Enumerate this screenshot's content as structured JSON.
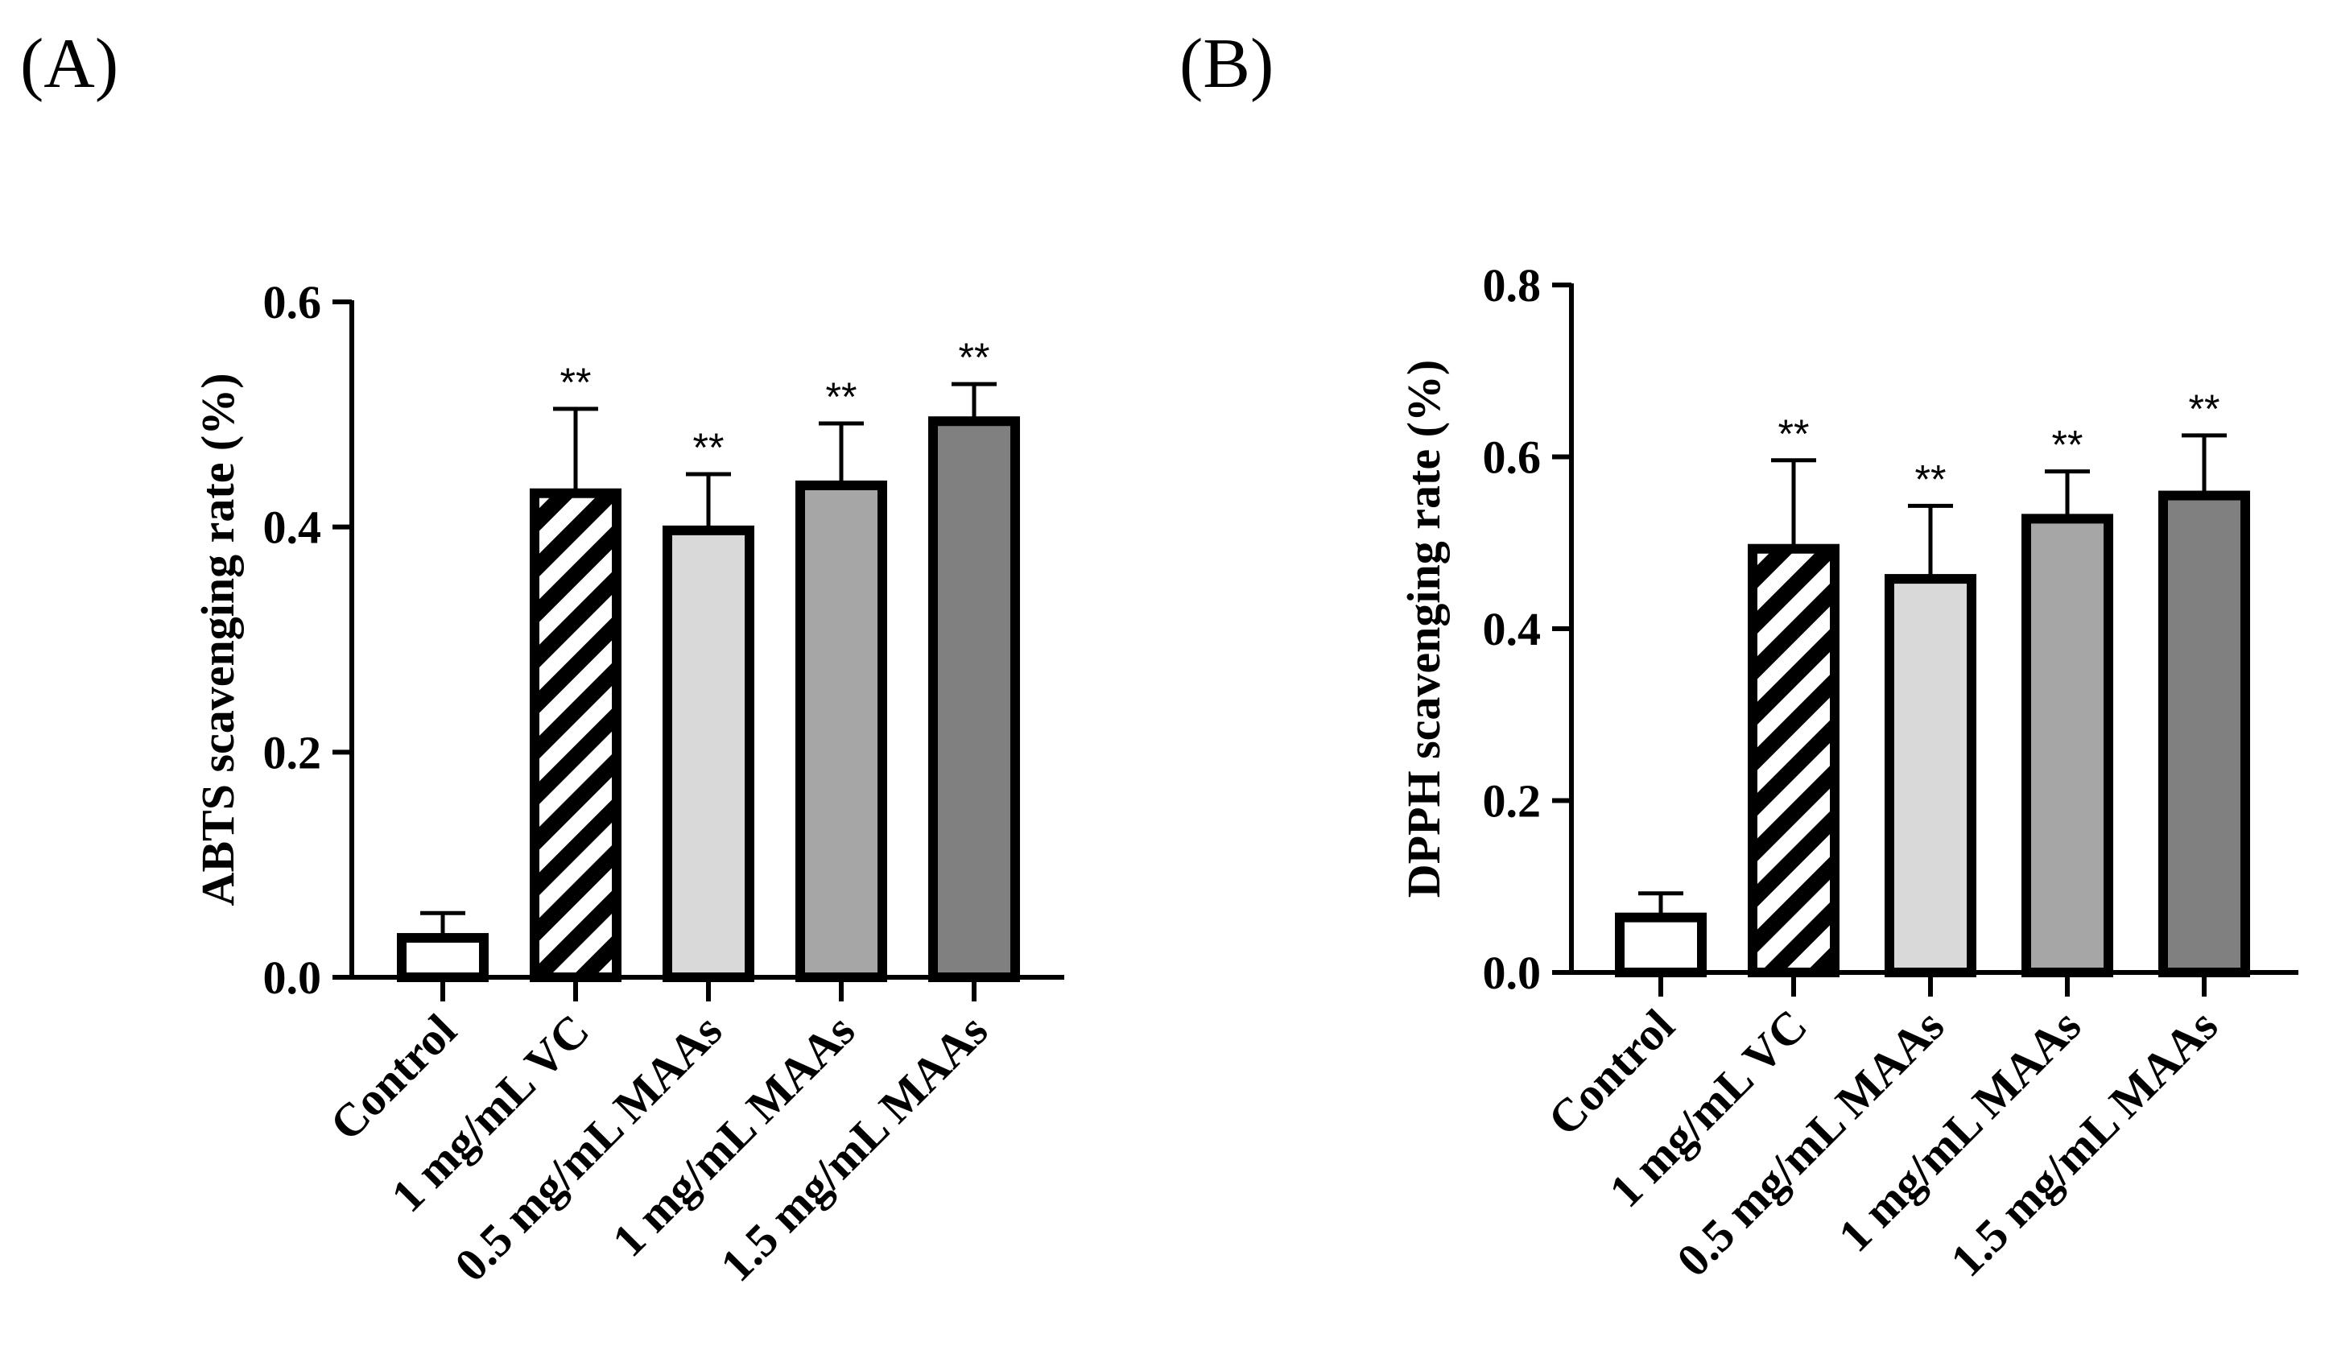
{
  "figure": {
    "panels": [
      "(A)",
      "(B)"
    ]
  },
  "chart_data": [
    {
      "type": "bar",
      "panel_label": "(A)",
      "categories": [
        "Control",
        "1 mg/mL VC",
        "0.5 mg/mL MAAs",
        "1 mg/mL MAAs",
        "1.5 mg/mL MAAs"
      ],
      "values": [
        0.035,
        0.43,
        0.397,
        0.437,
        0.494
      ],
      "errors": [
        0.022,
        0.075,
        0.05,
        0.055,
        0.033
      ],
      "significance": [
        "",
        "**",
        "**",
        "**",
        "**"
      ],
      "fills": [
        "#ffffff",
        "hatch",
        "#d9d9d9",
        "#a6a6a6",
        "#808080"
      ],
      "ylabel": "ABTS scavenging rate (%)",
      "xlabel": "",
      "ylim": [
        0,
        0.6
      ],
      "yticks": [
        0,
        0.2,
        0.4,
        0.6
      ],
      "ytick_labels": [
        "0.0",
        "0.2",
        "0.4",
        "0.6"
      ]
    },
    {
      "type": "bar",
      "panel_label": "(B)",
      "categories": [
        "Control",
        "1 mg/mL VC",
        "0.5 mg/mL MAAs",
        "1 mg/mL MAAs",
        "1.5 mg/mL MAAs"
      ],
      "values": [
        0.064,
        0.493,
        0.458,
        0.528,
        0.555
      ],
      "errors": [
        0.028,
        0.103,
        0.085,
        0.055,
        0.07
      ],
      "significance": [
        "",
        "**",
        "**",
        "**",
        "**"
      ],
      "fills": [
        "#ffffff",
        "hatch",
        "#d9d9d9",
        "#a6a6a6",
        "#808080"
      ],
      "ylabel": "DPPH scavenging rate (%)",
      "xlabel": "",
      "ylim": [
        0,
        0.8
      ],
      "yticks": [
        0,
        0.2,
        0.4,
        0.6,
        0.8
      ],
      "ytick_labels": [
        "0.0",
        "0.2",
        "0.4",
        "0.6",
        "0.8"
      ]
    }
  ]
}
